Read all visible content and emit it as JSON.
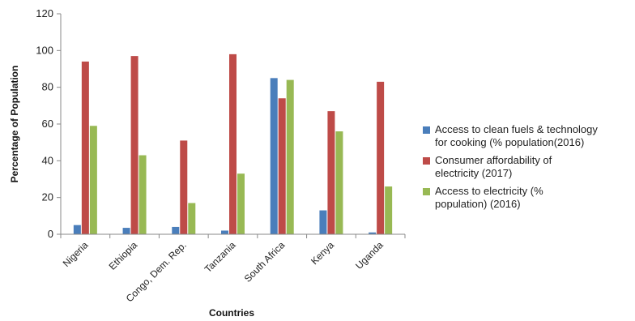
{
  "chart_data": {
    "type": "bar",
    "title": "",
    "xlabel": "Countries",
    "ylabel": "Percentage of Population",
    "ylim": [
      0,
      120
    ],
    "yticks": [
      0,
      20,
      40,
      60,
      80,
      100,
      120
    ],
    "grid": false,
    "legend_position": "right",
    "categories": [
      "Nigeria",
      "Ethiopia",
      "Congo, Dem. Rep.",
      "Tanzania",
      "South Africa",
      "Kenya",
      "Uganda"
    ],
    "series": [
      {
        "name": "Access to clean fuels & technology\nfor cooking (% population(2016)",
        "color": "#4a7ebb",
        "values": [
          5,
          3.5,
          4,
          2,
          85,
          13,
          1
        ]
      },
      {
        "name": "Consumer affordability  of\nelectricity (2017)",
        "color": "#be4b48",
        "values": [
          94,
          97,
          51,
          98,
          74,
          67,
          83
        ]
      },
      {
        "name": "Access to electricity (%\npopulation) (2016)",
        "color": "#98b954",
        "values": [
          59,
          43,
          17,
          33,
          84,
          56,
          26
        ]
      }
    ]
  }
}
